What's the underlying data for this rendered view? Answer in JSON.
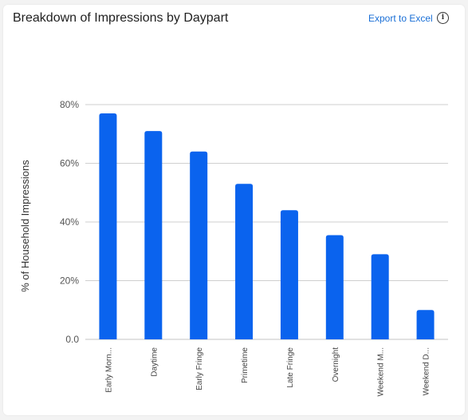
{
  "header": {
    "title": "Breakdown of Impressions by Daypart",
    "export_label": "Export to Excel",
    "info_glyph": "i"
  },
  "colors": {
    "bar": "#0a63ee",
    "grid": "#cfcfcf",
    "accent": "#1a6fd6"
  },
  "icons": {
    "info": "info-circle-icon"
  },
  "chart_data": {
    "type": "bar",
    "title": "Breakdown of Impressions by Daypart",
    "xlabel": "",
    "ylabel": "% of Household Impressions",
    "categories": [
      "Early Morn...",
      "Daytime",
      "Early Fringe",
      "Primetime",
      "Late Fringe",
      "Overnight",
      "Weekend M...",
      "Weekend D..."
    ],
    "values": [
      77,
      71,
      64,
      53,
      44,
      35.5,
      29,
      10
    ],
    "ylim": [
      0,
      80
    ],
    "yticks": [
      0,
      20,
      40,
      60,
      80
    ],
    "ytick_labels": [
      "0.0",
      "20%",
      "40%",
      "60%",
      "80%"
    ],
    "grid": true
  }
}
